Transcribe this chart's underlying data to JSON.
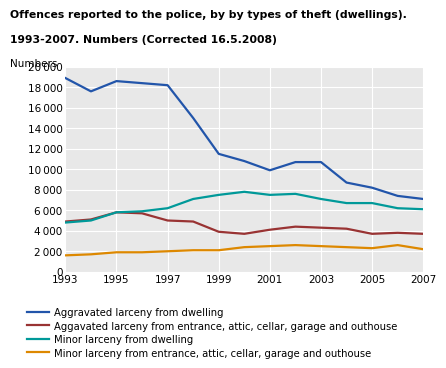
{
  "title_line1": "Offences reported to the police, by by types of theft (dwellings).",
  "title_line2": "1993-2007. Numbers (Corrected 16.5.2008)",
  "ylabel": "Numbers",
  "years": [
    1993,
    1994,
    1995,
    1996,
    1997,
    1998,
    1999,
    2000,
    2001,
    2002,
    2003,
    2004,
    2005,
    2006,
    2007
  ],
  "series": [
    {
      "label": "Aggravated larceny from dwelling",
      "color": "#2255aa",
      "values": [
        18900,
        17600,
        18600,
        18400,
        18200,
        15000,
        11500,
        10800,
        9900,
        10700,
        10700,
        8700,
        8200,
        7400,
        7100
      ]
    },
    {
      "label": "Aggavated larceny from entrance, attic, cellar, garage and outhouse",
      "color": "#993333",
      "values": [
        4900,
        5100,
        5800,
        5700,
        5000,
        4900,
        3900,
        3700,
        4100,
        4400,
        4300,
        4200,
        3700,
        3800,
        3700
      ]
    },
    {
      "label": "Minor larceny from dwelling",
      "color": "#009999",
      "values": [
        4800,
        5000,
        5800,
        5900,
        6200,
        7100,
        7500,
        7800,
        7500,
        7600,
        7100,
        6700,
        6700,
        6200,
        6100
      ]
    },
    {
      "label": "Minor larceny from entrance, attic, cellar, garage and outhouse",
      "color": "#dd8800",
      "values": [
        1600,
        1700,
        1900,
        1900,
        2000,
        2100,
        2100,
        2400,
        2500,
        2600,
        2500,
        2400,
        2300,
        2600,
        2200
      ]
    }
  ],
  "ylim": [
    0,
    20000
  ],
  "yticks": [
    0,
    2000,
    4000,
    6000,
    8000,
    10000,
    12000,
    14000,
    16000,
    18000,
    20000
  ],
  "xticks": [
    1993,
    1995,
    1997,
    1999,
    2001,
    2003,
    2005,
    2007
  ],
  "background_color": "#ffffff",
  "plot_bg_color": "#e8e8e8",
  "grid_color": "#ffffff"
}
